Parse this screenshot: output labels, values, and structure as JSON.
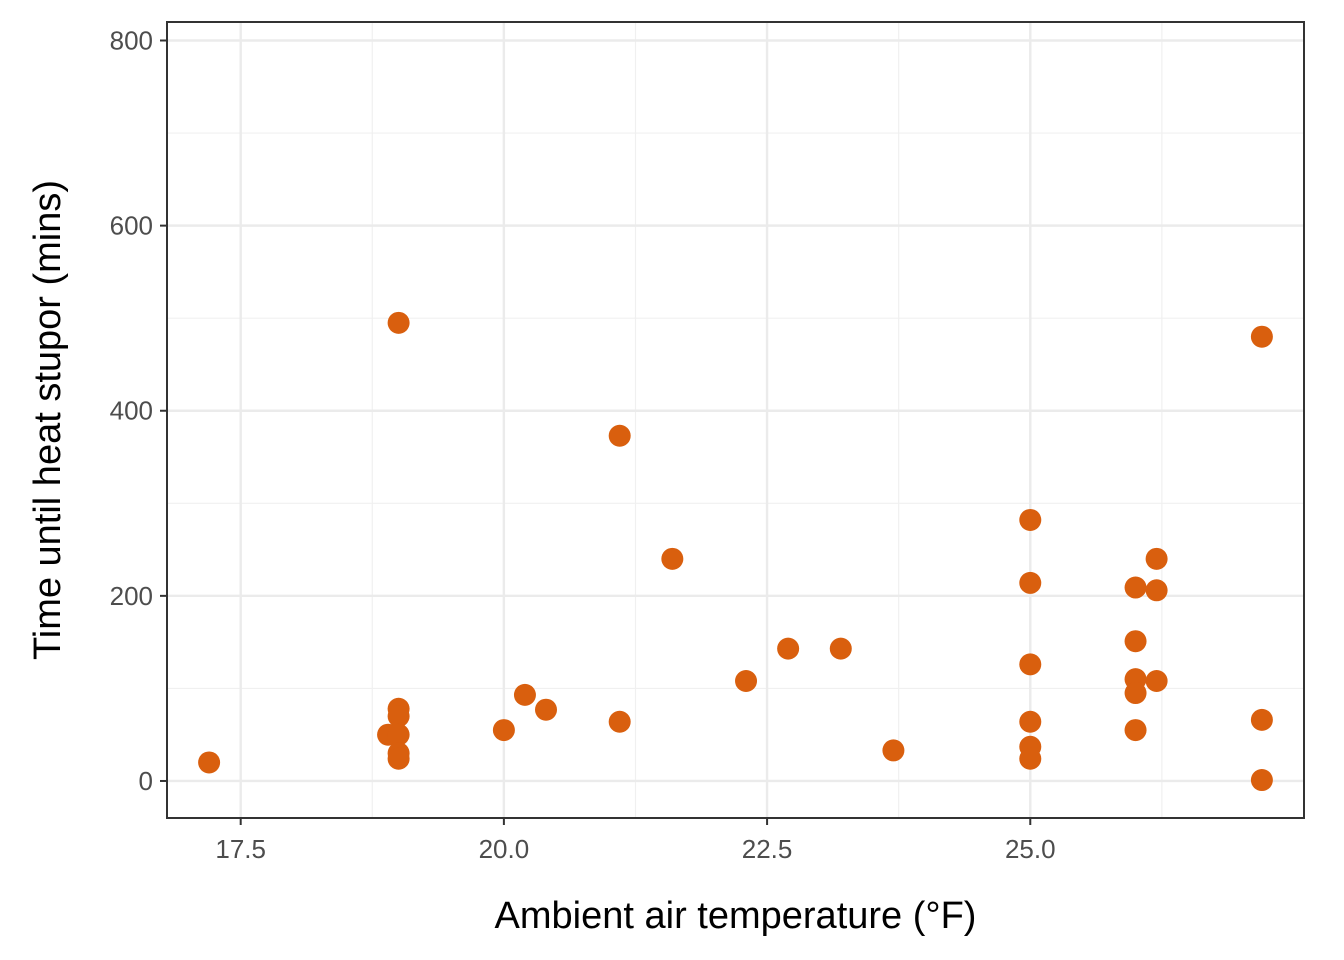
{
  "chart_data": {
    "type": "scatter",
    "title": "",
    "xlabel": "Ambient air temperature (°F)",
    "ylabel": "Time until heat stupor (mins)",
    "xlim": [
      16.8,
      27.6
    ],
    "ylim": [
      -40,
      820
    ],
    "x_ticks": [
      17.5,
      20.0,
      22.5,
      25.0
    ],
    "x_tick_labels": [
      "17.5",
      "20.0",
      "22.5",
      "25.0"
    ],
    "y_ticks": [
      0,
      200,
      400,
      600,
      800
    ],
    "y_tick_labels": [
      "0",
      "200",
      "400",
      "600",
      "800"
    ],
    "grid": true,
    "legend": "none",
    "point_color": "#D95F0E",
    "points": [
      {
        "x": 17.2,
        "y": 20
      },
      {
        "x": 18.9,
        "y": 50
      },
      {
        "x": 19.0,
        "y": 495
      },
      {
        "x": 19.0,
        "y": 78
      },
      {
        "x": 19.0,
        "y": 70
      },
      {
        "x": 19.0,
        "y": 50
      },
      {
        "x": 19.0,
        "y": 30
      },
      {
        "x": 19.0,
        "y": 24
      },
      {
        "x": 20.0,
        "y": 55
      },
      {
        "x": 20.2,
        "y": 93
      },
      {
        "x": 20.4,
        "y": 77
      },
      {
        "x": 21.1,
        "y": 373
      },
      {
        "x": 21.1,
        "y": 64
      },
      {
        "x": 21.6,
        "y": 240
      },
      {
        "x": 22.3,
        "y": 108
      },
      {
        "x": 22.7,
        "y": 143
      },
      {
        "x": 23.2,
        "y": 143
      },
      {
        "x": 23.7,
        "y": 33
      },
      {
        "x": 25.0,
        "y": 282
      },
      {
        "x": 25.0,
        "y": 214
      },
      {
        "x": 25.0,
        "y": 126
      },
      {
        "x": 25.0,
        "y": 64
      },
      {
        "x": 25.0,
        "y": 37
      },
      {
        "x": 25.0,
        "y": 24
      },
      {
        "x": 26.0,
        "y": 209
      },
      {
        "x": 26.0,
        "y": 151
      },
      {
        "x": 26.0,
        "y": 110
      },
      {
        "x": 26.0,
        "y": 95
      },
      {
        "x": 26.0,
        "y": 55
      },
      {
        "x": 26.2,
        "y": 240
      },
      {
        "x": 26.2,
        "y": 206
      },
      {
        "x": 26.2,
        "y": 108
      },
      {
        "x": 27.2,
        "y": 480
      },
      {
        "x": 27.2,
        "y": 66
      },
      {
        "x": 27.2,
        "y": 1
      }
    ]
  }
}
